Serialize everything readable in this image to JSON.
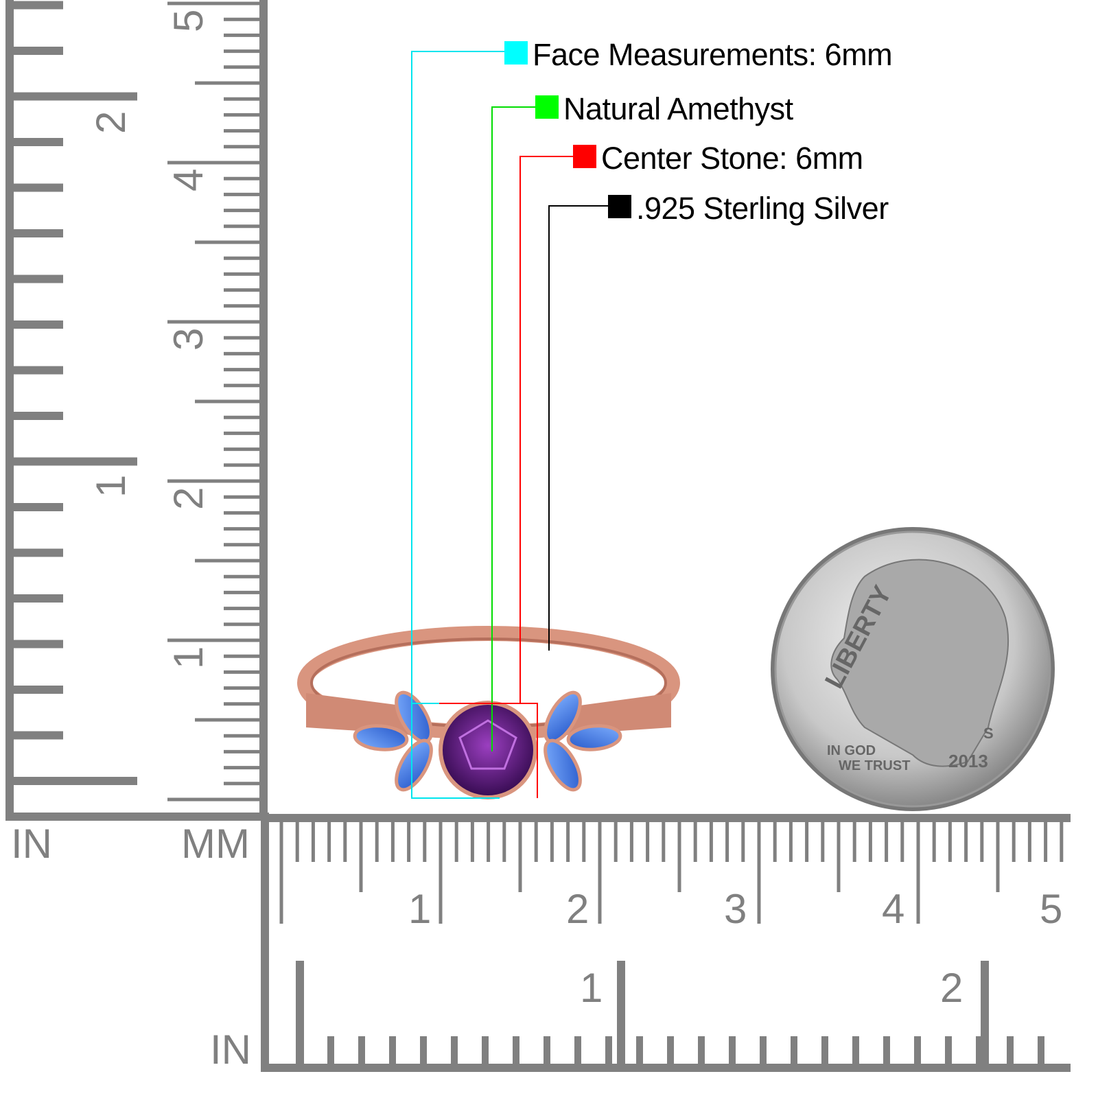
{
  "legend": [
    {
      "label": "Face Measurements: 6mm",
      "color": "#00ffff"
    },
    {
      "label": "Natural Amethyst",
      "color": "#00ff00"
    },
    {
      "label": "Center Stone: 6mm",
      "color": "#ff0000"
    },
    {
      "label": ".925 Sterling Silver",
      "color": "#000000"
    }
  ],
  "ruler": {
    "unit_in_left": "IN",
    "unit_mm": "MM",
    "unit_in_bottom": "IN",
    "vertical_mm_labels": [
      "1",
      "2",
      "3",
      "4",
      "5"
    ],
    "vertical_in_labels": [
      "1",
      "2"
    ],
    "horizontal_mm_labels": [
      "1",
      "2",
      "3",
      "4",
      "5"
    ],
    "horizontal_in_labels": [
      "1",
      "2"
    ],
    "color": "#808080"
  },
  "coin": {
    "legend": "LIBERTY",
    "motto_1": "IN GOD",
    "motto_2": "WE TRUST",
    "year": "2013",
    "mint_mark": "S"
  },
  "colors": {
    "metal": "#d9957f",
    "center_stone": "#5a1a7a",
    "side_stones": "#3f7de0"
  }
}
